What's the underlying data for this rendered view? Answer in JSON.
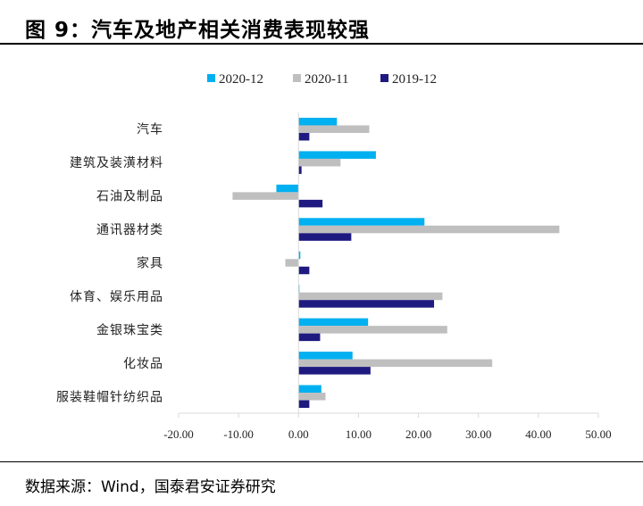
{
  "header": {
    "title": "图 9：汽车及地产相关消费表现较强"
  },
  "footer": {
    "source": "数据来源：Wind，国泰君安证券研究"
  },
  "colors": {
    "s2020_12": "#00b0f0",
    "s2020_11": "#bfbfbf",
    "s2019_12": "#1f1a80",
    "axis": "#d9d9d9"
  },
  "chart_data": {
    "type": "bar",
    "orientation": "horizontal",
    "title": "",
    "xlabel": "",
    "ylabel": "",
    "xlim": [
      -20,
      50
    ],
    "xticks": [
      "-20.00",
      "-10.00",
      "0.00",
      "10.00",
      "20.00",
      "30.00",
      "40.00",
      "50.00"
    ],
    "xtick_values": [
      -20,
      -10,
      0,
      10,
      20,
      30,
      40,
      50
    ],
    "legend_position": "top",
    "grid": false,
    "categories": [
      "汽车",
      "建筑及装潢材料",
      "石油及制品",
      "通讯器材类",
      "家具",
      "体育、娱乐用品",
      "金银珠宝类",
      "化妆品",
      "服装鞋帽针纺织品"
    ],
    "series": [
      {
        "name": "2020-12",
        "color": "#00b0f0",
        "values": [
          6.4,
          12.9,
          -3.7,
          21.0,
          0.3,
          0.1,
          11.6,
          9.0,
          3.8
        ]
      },
      {
        "name": "2020-11",
        "color": "#bfbfbf",
        "values": [
          11.8,
          7.0,
          -11.0,
          43.5,
          -2.2,
          24.0,
          24.8,
          32.3,
          4.5
        ]
      },
      {
        "name": "2019-12",
        "color": "#1f1a80",
        "values": [
          1.8,
          0.5,
          4.0,
          8.8,
          1.8,
          22.6,
          3.6,
          12.0,
          1.8
        ]
      }
    ]
  }
}
